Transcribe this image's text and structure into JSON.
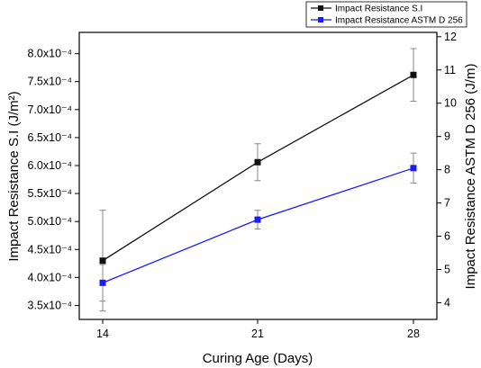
{
  "chart_data": {
    "type": "line",
    "x": [
      14,
      21,
      28
    ],
    "xlabel": "Curing Age (Days)",
    "ylabel_left": "Impact Resistance S.I (J/m²)",
    "ylabel_right": "Impact Resistance ASTM D 256 (J/m)",
    "ylim_left": [
      0.000325,
      0.000838
    ],
    "ylim_right": [
      3.5,
      12.13
    ],
    "xticks": [
      "14",
      "21",
      "28"
    ],
    "yticks_left": [
      {
        "value": 0.00035,
        "label": "3.5x10⁻⁴"
      },
      {
        "value": 0.0004,
        "label": "4.0x10⁻⁴"
      },
      {
        "value": 0.00045,
        "label": "4.5x10⁻⁴"
      },
      {
        "value": 0.0005,
        "label": "5.0x10⁻⁴"
      },
      {
        "value": 0.00055,
        "label": "5.5x10⁻⁴"
      },
      {
        "value": 0.0006,
        "label": "6.0x10⁻⁴"
      },
      {
        "value": 0.00065,
        "label": "6.5x10⁻⁴"
      },
      {
        "value": 0.0007,
        "label": "7.0x10⁻⁴"
      },
      {
        "value": 0.00075,
        "label": "7.5x10⁻⁴"
      },
      {
        "value": 0.0008,
        "label": "8.0x10⁻⁴"
      }
    ],
    "yticks_right": [
      "4",
      "5",
      "6",
      "7",
      "8",
      "9",
      "10",
      "11",
      "12"
    ],
    "legend_position": "top-right",
    "series": [
      {
        "name": "Impact Resistance S.I",
        "axis": "left",
        "color": "#111111",
        "marker": "square",
        "values": [
          0.00043,
          0.000606,
          0.000762
        ],
        "error": [
          9e-05,
          3.3e-05,
          4.7e-05
        ]
      },
      {
        "name": "Impact Resistance ASTM D 256",
        "axis": "right",
        "color": "#1a1aff",
        "marker": "square",
        "values": [
          4.6,
          6.5,
          8.05
        ],
        "error": [
          0.55,
          0.28,
          0.45
        ]
      }
    ],
    "grid": false
  }
}
